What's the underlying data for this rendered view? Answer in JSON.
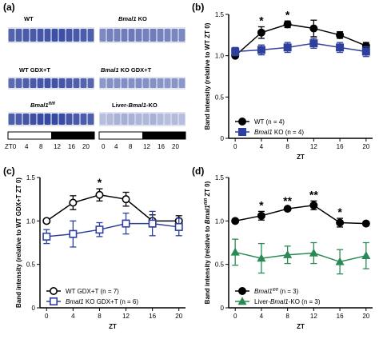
{
  "panel_a": {
    "letter": "(a)",
    "blots": [
      {
        "left_label": "WT",
        "right_label": "Bmal1 KO",
        "right_italic_prefix": "Bmal1",
        "right_rest": " KO"
      },
      {
        "left_label": "WT GDX+T",
        "right_label": "Bmal1 KO GDX+T",
        "right_italic_prefix": "Bmal1",
        "right_rest": " KO GDX+T"
      },
      {
        "left_label": "Bmal1fl/fl",
        "right_label": "Liver-Bmal1-KO"
      }
    ],
    "zt_ticks": [
      "ZT0",
      "4",
      "8",
      "12",
      "16",
      "20"
    ]
  },
  "chart_data": [
    {
      "panel": "(b)",
      "type": "line",
      "x": [
        0,
        4,
        8,
        12,
        16,
        20
      ],
      "xlabel": "ZT",
      "ylabel": "Band intensity (relative to WT ZT 0)",
      "ylim": [
        0,
        1.5
      ],
      "yticks": [
        "0",
        "0.5",
        "1.0",
        "1.5"
      ],
      "xticks": [
        "0",
        "4",
        "8",
        "12",
        "16",
        "20"
      ],
      "series": [
        {
          "name": "WT (n = 4)",
          "values": [
            1.0,
            1.28,
            1.38,
            1.33,
            1.25,
            1.12
          ],
          "err": [
            0.02,
            0.07,
            0.04,
            0.1,
            0.04,
            0.04
          ],
          "color": "#000000",
          "marker": "circle-filled"
        },
        {
          "name": "Bmal1 KO (n = 4)",
          "values": [
            1.05,
            1.07,
            1.1,
            1.15,
            1.1,
            1.05
          ],
          "err": [
            0.05,
            0.06,
            0.06,
            0.06,
            0.06,
            0.06
          ],
          "color": "#2e3f9e",
          "marker": "square-filled"
        }
      ],
      "annotations": [
        {
          "x": 4,
          "text": "*"
        },
        {
          "x": 8,
          "text": "*"
        }
      ],
      "legend": "bottom-left"
    },
    {
      "panel": "(c)",
      "type": "line",
      "x": [
        0,
        4,
        8,
        12,
        16,
        20
      ],
      "xlabel": "ZT",
      "ylabel": "Band intensity (relative to WT GDX+T ZT 0)",
      "ylim": [
        0,
        1.5
      ],
      "yticks": [
        "0",
        "0.5",
        "1.0",
        "1.5"
      ],
      "xticks": [
        "0",
        "4",
        "8",
        "12",
        "16",
        "20"
      ],
      "series": [
        {
          "name": "WT GDX+T (n = 7)",
          "values": [
            1.0,
            1.21,
            1.3,
            1.25,
            1.0,
            1.0
          ],
          "err": [
            0.02,
            0.08,
            0.07,
            0.08,
            0.07,
            0.06
          ],
          "color": "#000000",
          "marker": "circle-open"
        },
        {
          "name": "Bmal1 KO GDX+T (n = 6)",
          "values": [
            0.82,
            0.85,
            0.9,
            0.97,
            0.97,
            0.93
          ],
          "err": [
            0.08,
            0.15,
            0.08,
            0.12,
            0.14,
            0.1
          ],
          "color": "#2e3f9e",
          "marker": "square-open"
        }
      ],
      "annotations": [
        {
          "x": 8,
          "text": "*"
        }
      ],
      "legend": "bottom-left"
    },
    {
      "panel": "(d)",
      "type": "line",
      "x": [
        0,
        4,
        8,
        12,
        16,
        20
      ],
      "xlabel": "ZT",
      "ylabel": "Band intensity (relative to Bmal1fl/fl ZT 0)",
      "ylim": [
        0,
        1.5
      ],
      "yticks": [
        "0",
        "0.5",
        "1.0",
        "1.5"
      ],
      "xticks": [
        "0",
        "4",
        "8",
        "12",
        "16",
        "20"
      ],
      "series": [
        {
          "name": "Bmal1fl/fl (n = 3)",
          "values": [
            1.0,
            1.06,
            1.14,
            1.18,
            0.98,
            0.97
          ],
          "err": [
            0.02,
            0.05,
            0.02,
            0.05,
            0.05,
            0.02
          ],
          "color": "#000000",
          "marker": "circle-filled"
        },
        {
          "name": "Liver-Bmal1-KO (n = 3)",
          "values": [
            0.64,
            0.57,
            0.61,
            0.63,
            0.53,
            0.6
          ],
          "err": [
            0.15,
            0.17,
            0.1,
            0.12,
            0.14,
            0.15
          ],
          "color": "#2a8a55",
          "marker": "triangle-filled"
        }
      ],
      "annotations": [
        {
          "x": 4,
          "text": "*"
        },
        {
          "x": 8,
          "text": "**"
        },
        {
          "x": 12,
          "text": "**"
        },
        {
          "x": 16,
          "text": "*"
        }
      ],
      "legend": "bottom-left"
    }
  ]
}
